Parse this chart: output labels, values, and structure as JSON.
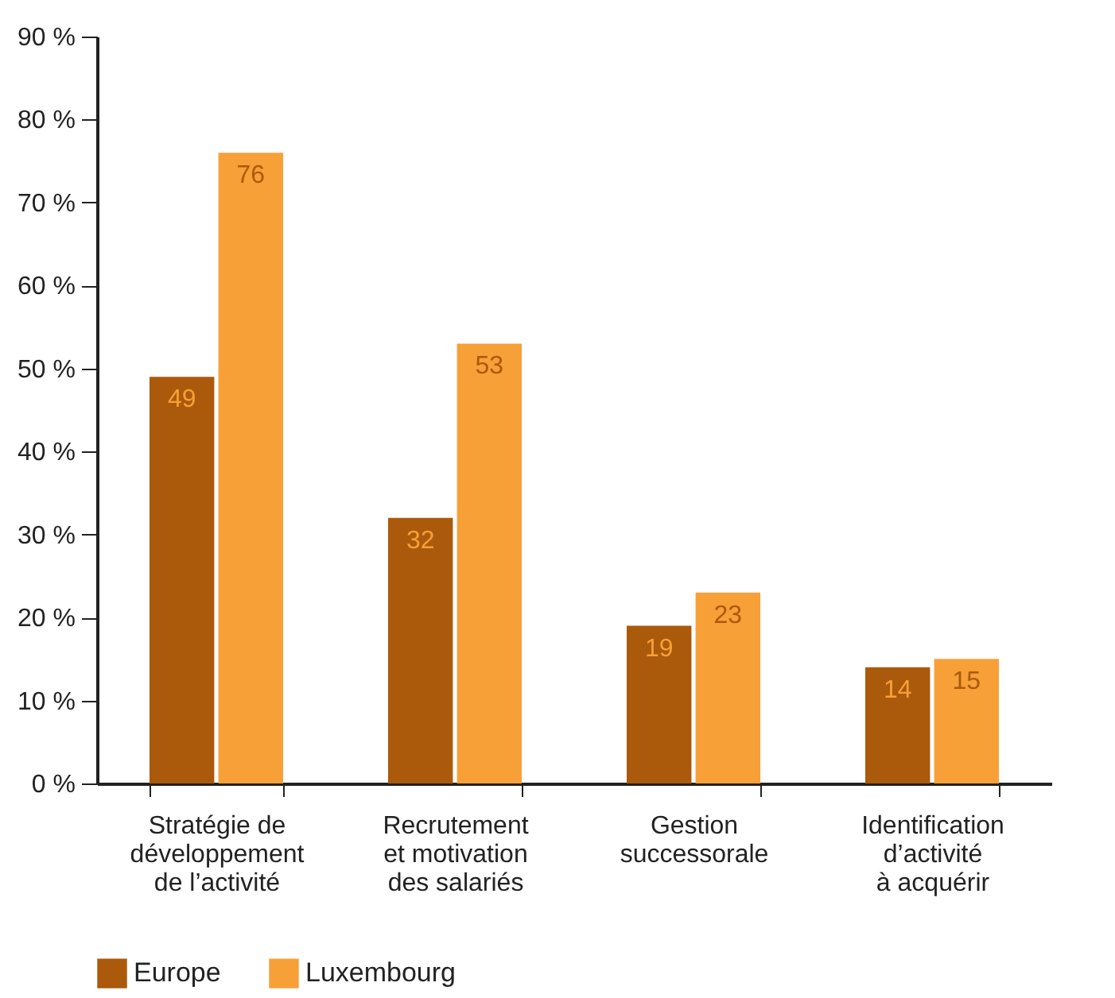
{
  "chart_data": {
    "type": "bar",
    "categories": [
      "Stratégie de\ndéveloppement\nde l’activité",
      "Recrutement\net motivation\ndes salariés",
      "Gestion\nsuccessorale",
      "Identification\nd’activité\nà acquérir"
    ],
    "series": [
      {
        "name": "Europe",
        "color": "#ab590b",
        "values": [
          49,
          32,
          19,
          14
        ]
      },
      {
        "name": "Luxembourg",
        "color": "#f7a037",
        "values": [
          76,
          53,
          23,
          15
        ]
      }
    ],
    "ylim": [
      0,
      90
    ],
    "yticks": [
      {
        "value": 0,
        "label": "0 %"
      },
      {
        "value": 10,
        "label": "10 %"
      },
      {
        "value": 20,
        "label": "20 %"
      },
      {
        "value": 30,
        "label": "30 %"
      },
      {
        "value": 40,
        "label": "40 %"
      },
      {
        "value": 50,
        "label": "50 %"
      },
      {
        "value": 60,
        "label": "60 %"
      },
      {
        "value": 70,
        "label": "70 %"
      },
      {
        "value": 80,
        "label": "80 %"
      },
      {
        "value": 90,
        "label": "90 %"
      }
    ],
    "data_labels": true,
    "grid": false,
    "legend": "bottom"
  }
}
